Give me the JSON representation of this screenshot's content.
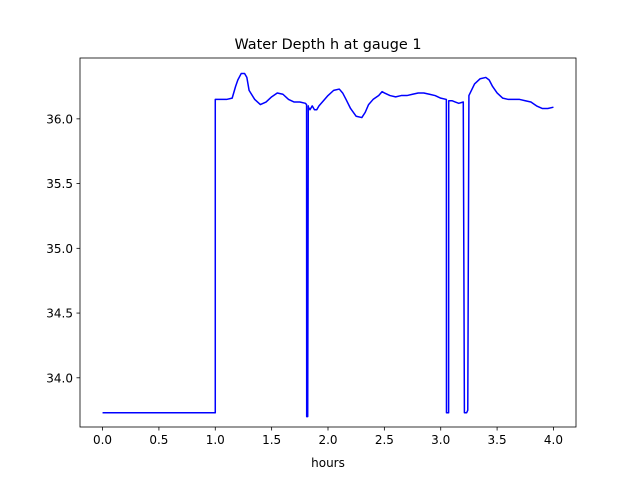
{
  "chart_data": {
    "type": "line",
    "title": "Water Depth h at gauge 1",
    "xlabel": "hours",
    "ylabel": "",
    "xlim": [
      -0.2,
      4.2
    ],
    "ylim": [
      33.62,
      36.47
    ],
    "grid": false,
    "x_ticks": [
      0.0,
      0.5,
      1.0,
      1.5,
      2.0,
      2.5,
      3.0,
      3.5,
      4.0
    ],
    "x_tick_labels": [
      "0.0",
      "0.5",
      "1.0",
      "1.5",
      "2.0",
      "2.5",
      "3.0",
      "3.5",
      "4.0"
    ],
    "y_ticks": [
      34.0,
      34.5,
      35.0,
      35.5,
      36.0
    ],
    "y_tick_labels": [
      "34.0",
      "34.5",
      "35.0",
      "35.5",
      "36.0"
    ],
    "series": [
      {
        "color": "#0000ff",
        "x": [
          0.0,
          0.5,
          1.0,
          1.0,
          1.05,
          1.1,
          1.15,
          1.17,
          1.18,
          1.2,
          1.23,
          1.26,
          1.28,
          1.3,
          1.35,
          1.4,
          1.45,
          1.5,
          1.55,
          1.6,
          1.65,
          1.7,
          1.75,
          1.8,
          1.81,
          1.811,
          1.82,
          1.825,
          1.826,
          1.84,
          1.86,
          1.88,
          1.9,
          1.92,
          1.95,
          2.0,
          2.05,
          2.1,
          2.13,
          2.16,
          2.2,
          2.25,
          2.3,
          2.33,
          2.36,
          2.4,
          2.45,
          2.48,
          2.5,
          2.55,
          2.6,
          2.65,
          2.7,
          2.75,
          2.8,
          2.85,
          2.9,
          2.95,
          3.0,
          3.05,
          3.051,
          3.07,
          3.071,
          3.08,
          3.1,
          3.13,
          3.16,
          3.2,
          3.21,
          3.23,
          3.24,
          3.25,
          3.3,
          3.35,
          3.4,
          3.43,
          3.46,
          3.5,
          3.55,
          3.6,
          3.65,
          3.7,
          3.75,
          3.8,
          3.85,
          3.9,
          3.95,
          4.0
        ],
        "y": [
          33.73,
          33.73,
          33.73,
          36.15,
          36.15,
          36.15,
          36.16,
          36.22,
          36.25,
          36.3,
          36.35,
          36.35,
          36.32,
          36.22,
          36.15,
          36.11,
          36.13,
          36.17,
          36.2,
          36.19,
          36.15,
          36.13,
          36.13,
          36.12,
          36.11,
          33.7,
          33.7,
          36.1,
          36.09,
          36.07,
          36.1,
          36.07,
          36.07,
          36.1,
          36.13,
          36.18,
          36.22,
          36.23,
          36.2,
          36.15,
          36.08,
          36.02,
          36.01,
          36.05,
          36.11,
          36.15,
          36.18,
          36.21,
          36.2,
          36.18,
          36.17,
          36.18,
          36.18,
          36.19,
          36.2,
          36.2,
          36.19,
          36.18,
          36.16,
          36.15,
          33.73,
          33.73,
          36.14,
          36.14,
          36.14,
          36.13,
          36.12,
          36.13,
          33.73,
          33.73,
          33.75,
          36.18,
          36.27,
          36.31,
          36.32,
          36.3,
          36.25,
          36.2,
          36.16,
          36.15,
          36.15,
          36.15,
          36.14,
          36.13,
          36.1,
          36.08,
          36.08,
          36.09
        ]
      }
    ]
  }
}
